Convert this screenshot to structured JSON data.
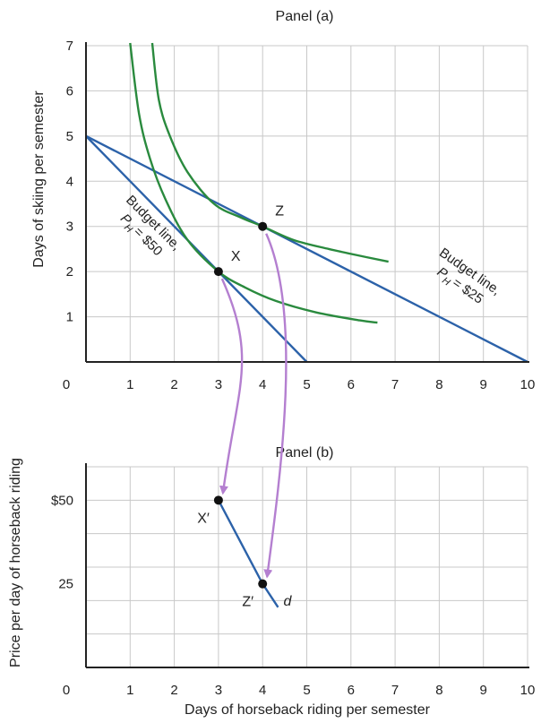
{
  "chart_data": [
    {
      "type": "line",
      "title": "Panel (a)",
      "xlabel": "",
      "ylabel": "Days of skiing per semester",
      "xlim": [
        0,
        10
      ],
      "ylim": [
        0,
        7
      ],
      "x_ticks": [
        "0",
        "1",
        "2",
        "3",
        "4",
        "5",
        "6",
        "7",
        "8",
        "9",
        "10"
      ],
      "y_ticks": [
        "1",
        "2",
        "3",
        "4",
        "5",
        "6",
        "7"
      ],
      "grid": true,
      "budget_lines": [
        {
          "points": [
            [
              0,
              5
            ],
            [
              5,
              0
            ]
          ],
          "label_lines": [
            "Budget line,",
            "P",
            "H",
            "= $50"
          ],
          "color": "#2c62a9"
        },
        {
          "points": [
            [
              0,
              5
            ],
            [
              10,
              0
            ]
          ],
          "label_lines": [
            "Budget line,",
            "P",
            "H",
            "= $25"
          ],
          "color": "#2c62a9"
        }
      ],
      "indifference_curves": [
        {
          "color": "#2a8a3e",
          "points": [
            [
              1,
              7.06
            ],
            [
              1.2,
              5.5
            ],
            [
              1.45,
              4.5
            ],
            [
              1.8,
              3.6
            ],
            [
              2.3,
              2.7
            ],
            [
              3,
              2
            ],
            [
              3.6,
              1.65
            ],
            [
              4.3,
              1.35
            ],
            [
              5.2,
              1.1
            ],
            [
              6.2,
              0.92
            ],
            [
              6.6,
              0.87
            ]
          ]
        },
        {
          "color": "#2a8a3e",
          "points": [
            [
              1.5,
              7.06
            ],
            [
              1.65,
              5.8
            ],
            [
              1.9,
              5
            ],
            [
              2.3,
              4.2
            ],
            [
              2.9,
              3.5
            ],
            [
              3.5,
              3.2
            ],
            [
              4,
              3
            ],
            [
              4.7,
              2.7
            ],
            [
              5.5,
              2.5
            ],
            [
              6.3,
              2.33
            ],
            [
              6.85,
              2.22
            ]
          ]
        }
      ],
      "points": [
        {
          "label": "X",
          "x": 3,
          "y": 2
        },
        {
          "label": "Z",
          "x": 4,
          "y": 3
        }
      ]
    },
    {
      "type": "line",
      "title": "Panel (b)",
      "xlabel": "Days of horseback riding per semester",
      "ylabel": "Price per day of horseback riding",
      "xlim": [
        0,
        10
      ],
      "ylim": [
        0,
        60
      ],
      "x_ticks": [
        "0",
        "1",
        "2",
        "3",
        "4",
        "5",
        "6",
        "7",
        "8",
        "9",
        "10"
      ],
      "y_ticks": [
        {
          "value": 50,
          "label": "$50"
        },
        {
          "value": 25,
          "label": "25"
        }
      ],
      "grid": true,
      "series": [
        {
          "name": "d",
          "color": "#2c62a9",
          "x": [
            3,
            4,
            4.35
          ],
          "y": [
            50,
            25,
            18
          ]
        }
      ],
      "points": [
        {
          "label": "X′",
          "x": 3,
          "y": 50
        },
        {
          "label": "Z′",
          "x": 4,
          "y": 25
        }
      ]
    }
  ],
  "colors": {
    "budget": "#2c62a9",
    "indifference": "#2a8a3e",
    "arrow": "#b47fd0",
    "grid": "#c8c8c8",
    "axis": "#222222"
  }
}
